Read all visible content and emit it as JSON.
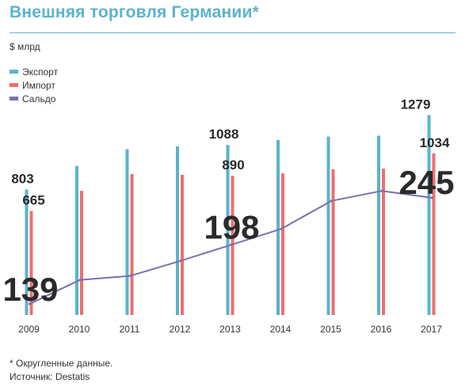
{
  "title": "Внешняя торговля Германии*",
  "unit": "$ млрд",
  "colors": {
    "export": "#5bb3cc",
    "import": "#ef6f6c",
    "balance": "#7b6fad",
    "accent": "#5bb3cc"
  },
  "legend": [
    {
      "label": "Экспорт",
      "color": "#5bb3cc"
    },
    {
      "label": "Импорт",
      "color": "#ef6f6c"
    },
    {
      "label": "Сальдо",
      "color": "#7b6fad"
    }
  ],
  "footer": {
    "note": "* Округленные данные.",
    "source": "Источник: Destatis"
  },
  "chart_data": {
    "type": "bar",
    "categories": [
      "2009",
      "2010",
      "2011",
      "2012",
      "2013",
      "2014",
      "2015",
      "2016",
      "2017"
    ],
    "series": [
      {
        "name": "Экспорт",
        "values": [
          803,
          954,
          1061,
          1079,
          1088,
          1120,
          1141,
          1147,
          1279
        ]
      },
      {
        "name": "Импорт",
        "values": [
          665,
          794,
          902,
          897,
          890,
          906,
          932,
          936,
          1034
        ]
      },
      {
        "name": "Сальдо",
        "values": [
          139,
          163,
          167,
          182,
          198,
          214,
          242,
          252,
          245
        ],
        "type": "line"
      }
    ],
    "data_labels": [
      {
        "series": "Экспорт",
        "category": "2009",
        "text": "803"
      },
      {
        "series": "Импорт",
        "category": "2009",
        "text": "665"
      },
      {
        "series": "Экспорт",
        "category": "2013",
        "text": "1088"
      },
      {
        "series": "Импорт",
        "category": "2013",
        "text": "890"
      },
      {
        "series": "Экспорт",
        "category": "2017",
        "text": "1279"
      },
      {
        "series": "Импорт",
        "category": "2017",
        "text": "1034"
      },
      {
        "series": "Сальдо",
        "category": "2009",
        "text": "139"
      },
      {
        "series": "Сальдо",
        "category": "2013",
        "text": "198"
      },
      {
        "series": "Сальдо",
        "category": "2017",
        "text": "245"
      }
    ],
    "legend_position": "top-left",
    "grid": false
  }
}
